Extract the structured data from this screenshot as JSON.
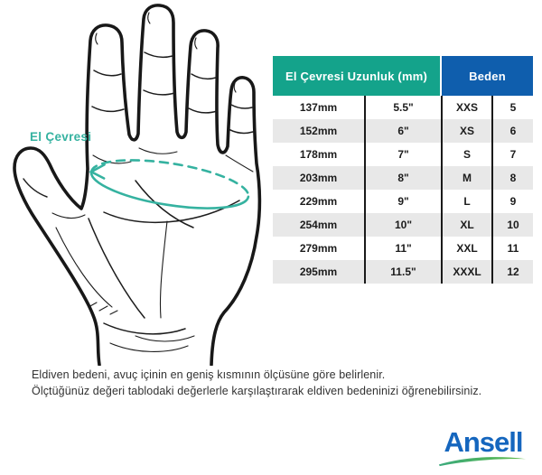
{
  "illustration": {
    "label": "El Çevresi"
  },
  "table": {
    "headers": [
      {
        "label": "El Çevresi Uzunluk (mm)"
      },
      {
        "label": "Beden"
      }
    ],
    "rows": [
      {
        "mm": "137mm",
        "inch": "5.5\"",
        "size": "XXS",
        "num": "5"
      },
      {
        "mm": "152mm",
        "inch": "6\"",
        "size": "XS",
        "num": "6"
      },
      {
        "mm": "178mm",
        "inch": "7\"",
        "size": "S",
        "num": "7"
      },
      {
        "mm": "203mm",
        "inch": "8\"",
        "size": "M",
        "num": "8"
      },
      {
        "mm": "229mm",
        "inch": "9\"",
        "size": "L",
        "num": "9"
      },
      {
        "mm": "254mm",
        "inch": "10\"",
        "size": "XL",
        "num": "10"
      },
      {
        "mm": "279mm",
        "inch": "11\"",
        "size": "XXL",
        "num": "11"
      },
      {
        "mm": "295mm",
        "inch": "11.5\"",
        "size": "XXXL",
        "num": "12"
      }
    ]
  },
  "footer": {
    "line1": "Eldiven bedeni, avuç içinin en geniş kısmının ölçüsüne göre belirlenir.",
    "line2": "Ölçtüğünüz değeri tablodaki değerlerle karşılaştırarak eldiven bedeninizi öğrenebilirsiniz."
  },
  "brand": {
    "name": "Ansell"
  },
  "colors": {
    "header-teal": "#14A38B",
    "header-blue": "#0F5EAD",
    "row-stripe": "#E8E8E8",
    "ink": "#1C1C1C",
    "accent-teal": "#35B2A0",
    "ansell-blue": "#1566BE",
    "swoosh-green": "#4CB548"
  }
}
